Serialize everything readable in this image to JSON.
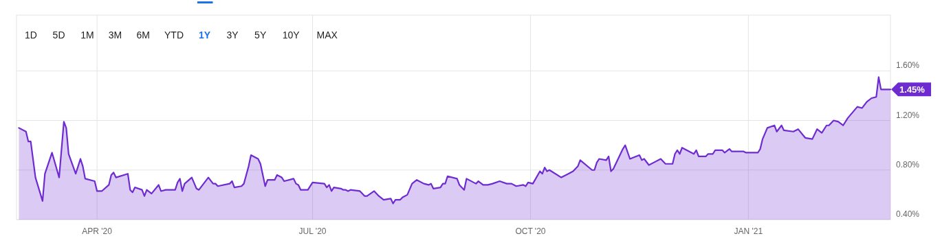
{
  "chart_data": {
    "type": "area",
    "x": [
      "2020-02-28",
      "2020-03-02",
      "2020-03-03",
      "2020-03-04",
      "2020-03-06",
      "2020-03-09",
      "2020-03-10",
      "2020-03-13",
      "2020-03-16",
      "2020-03-18",
      "2020-03-19",
      "2020-03-20",
      "2020-03-23",
      "2020-03-25",
      "2020-03-26",
      "2020-03-27",
      "2020-03-31",
      "2020-04-01",
      "2020-04-02",
      "2020-04-03",
      "2020-04-06",
      "2020-04-07",
      "2020-04-08",
      "2020-04-09",
      "2020-04-14",
      "2020-04-15",
      "2020-04-16",
      "2020-04-17",
      "2020-04-20",
      "2020-04-21",
      "2020-04-22",
      "2020-04-24",
      "2020-04-27",
      "2020-04-28",
      "2020-04-30",
      "2020-05-04",
      "2020-05-05",
      "2020-05-06",
      "2020-05-07",
      "2020-05-08",
      "2020-05-11",
      "2020-05-13",
      "2020-05-14",
      "2020-05-18",
      "2020-05-20",
      "2020-05-21",
      "2020-05-22",
      "2020-05-27",
      "2020-05-28",
      "2020-05-29",
      "2020-06-01",
      "2020-06-02",
      "2020-06-04",
      "2020-06-05",
      "2020-06-08",
      "2020-06-09",
      "2020-06-11",
      "2020-06-12",
      "2020-06-15",
      "2020-06-16",
      "2020-06-18",
      "2020-06-19",
      "2020-06-23",
      "2020-06-24",
      "2020-06-25",
      "2020-06-26",
      "2020-06-29",
      "2020-07-01",
      "2020-07-06",
      "2020-07-07",
      "2020-07-08",
      "2020-07-09",
      "2020-07-10",
      "2020-07-13",
      "2020-07-14",
      "2020-07-15",
      "2020-07-16",
      "2020-07-17",
      "2020-07-21",
      "2020-07-23",
      "2020-07-24",
      "2020-07-27",
      "2020-07-29",
      "2020-07-31",
      "2020-08-03",
      "2020-08-04",
      "2020-08-05",
      "2020-08-07",
      "2020-08-08",
      "2020-08-10",
      "2020-08-12",
      "2020-08-14",
      "2020-08-17",
      "2020-08-19",
      "2020-08-20",
      "2020-08-21",
      "2020-08-24",
      "2020-08-25",
      "2020-08-26",
      "2020-08-27",
      "2020-08-31",
      "2020-09-01",
      "2020-09-03",
      "2020-09-04",
      "2020-09-08",
      "2020-09-09",
      "2020-09-11",
      "2020-09-13",
      "2020-09-15",
      "2020-09-18",
      "2020-09-21",
      "2020-09-23",
      "2020-09-25",
      "2020-09-28",
      "2020-09-29",
      "2020-09-30",
      "2020-10-02",
      "2020-10-05",
      "2020-10-06",
      "2020-10-07",
      "2020-10-08",
      "2020-10-09",
      "2020-10-14",
      "2020-10-17",
      "2020-10-19",
      "2020-10-21",
      "2020-10-22",
      "2020-10-27",
      "2020-10-28",
      "2020-10-29",
      "2020-10-30",
      "2020-11-02",
      "2020-11-03",
      "2020-11-04",
      "2020-11-05",
      "2020-11-09",
      "2020-11-10",
      "2020-11-12",
      "2020-11-16",
      "2020-11-17",
      "2020-11-18",
      "2020-11-20",
      "2020-11-23",
      "2020-11-25",
      "2020-11-27",
      "2020-11-30",
      "2020-12-01",
      "2020-12-02",
      "2020-12-03",
      "2020-12-04",
      "2020-12-08",
      "2020-12-09",
      "2020-12-10",
      "2020-12-11",
      "2020-12-14",
      "2020-12-15",
      "2020-12-17",
      "2020-12-18",
      "2020-12-21",
      "2020-12-22",
      "2020-12-24",
      "2020-12-25",
      "2020-12-30",
      "2020-12-31",
      "2021-01-05",
      "2021-01-06",
      "2021-01-07",
      "2021-01-09",
      "2021-01-12",
      "2021-01-13",
      "2021-01-15",
      "2021-01-16",
      "2021-01-20",
      "2021-01-22",
      "2021-01-25",
      "2021-01-28",
      "2021-01-30",
      "2021-02-01",
      "2021-02-03",
      "2021-02-04",
      "2021-02-06",
      "2021-02-08",
      "2021-02-10",
      "2021-02-12",
      "2021-02-16",
      "2021-02-18",
      "2021-02-20",
      "2021-02-22",
      "2021-02-24",
      "2021-02-25",
      "2021-02-26",
      "2021-03-02"
    ],
    "series": [
      {
        "color": "#6e2bd0",
        "values": [
          1.14,
          1.11,
          1.03,
          1.03,
          0.74,
          0.55,
          0.77,
          0.94,
          0.74,
          1.19,
          1.14,
          0.93,
          0.77,
          0.89,
          0.83,
          0.73,
          0.71,
          0.63,
          0.63,
          0.63,
          0.68,
          0.76,
          0.78,
          0.74,
          0.77,
          0.64,
          0.62,
          0.66,
          0.64,
          0.59,
          0.64,
          0.61,
          0.68,
          0.63,
          0.64,
          0.64,
          0.7,
          0.73,
          0.63,
          0.69,
          0.74,
          0.65,
          0.64,
          0.74,
          0.69,
          0.69,
          0.67,
          0.69,
          0.71,
          0.66,
          0.67,
          0.69,
          0.83,
          0.92,
          0.89,
          0.85,
          0.67,
          0.72,
          0.72,
          0.76,
          0.74,
          0.71,
          0.73,
          0.69,
          0.68,
          0.64,
          0.64,
          0.7,
          0.69,
          0.66,
          0.68,
          0.63,
          0.66,
          0.65,
          0.64,
          0.64,
          0.63,
          0.64,
          0.63,
          0.59,
          0.59,
          0.63,
          0.59,
          0.56,
          0.57,
          0.53,
          0.56,
          0.56,
          0.58,
          0.6,
          0.69,
          0.72,
          0.69,
          0.68,
          0.69,
          0.65,
          0.66,
          0.69,
          0.69,
          0.75,
          0.73,
          0.68,
          0.64,
          0.73,
          0.69,
          0.71,
          0.68,
          0.68,
          0.69,
          0.71,
          0.69,
          0.69,
          0.67,
          0.68,
          0.67,
          0.7,
          0.69,
          0.79,
          0.77,
          0.82,
          0.79,
          0.8,
          0.74,
          0.77,
          0.79,
          0.83,
          0.88,
          0.8,
          0.8,
          0.86,
          0.89,
          0.88,
          0.91,
          0.79,
          0.81,
          0.97,
          1.0,
          0.89,
          0.92,
          0.88,
          0.89,
          0.84,
          0.87,
          0.89,
          0.85,
          0.85,
          0.93,
          0.96,
          0.93,
          0.98,
          0.94,
          0.93,
          0.96,
          0.91,
          0.91,
          0.93,
          0.93,
          0.96,
          0.96,
          0.94,
          0.97,
          0.95,
          0.95,
          0.94,
          0.94,
          0.97,
          1.05,
          1.14,
          1.16,
          1.11,
          1.16,
          1.12,
          1.11,
          1.13,
          1.06,
          1.05,
          1.13,
          1.1,
          1.16,
          1.16,
          1.2,
          1.19,
          1.16,
          1.22,
          1.31,
          1.3,
          1.35,
          1.38,
          1.39,
          1.55,
          1.45,
          1.45
        ]
      }
    ],
    "xlim": [
      "2020-02-27",
      "2021-03-02"
    ],
    "xticks": [
      {
        "value": "2020-04-01",
        "label": "APR '20"
      },
      {
        "value": "2020-07-01",
        "label": "JUL '20"
      },
      {
        "value": "2020-10-01",
        "label": "OCT '20"
      },
      {
        "value": "2021-01-01",
        "label": "JAN '21"
      }
    ],
    "ylim": [
      0.4,
      2.05
    ],
    "yticks": [
      {
        "value": 0.4,
        "label": "0.40%"
      },
      {
        "value": 0.8,
        "label": "0.80%"
      },
      {
        "value": 1.2,
        "label": "1.20%"
      },
      {
        "value": 1.6,
        "label": "1.60%"
      }
    ],
    "grid": true,
    "annotations": [
      "1D",
      "5D",
      "1M",
      "3M",
      "6M",
      "YTD",
      "1Y",
      "3Y",
      "5Y",
      "10Y",
      "MAX",
      {
        "text": "1.45%",
        "x": "2021-03-02",
        "y": 1.45
      }
    ]
  }
}
